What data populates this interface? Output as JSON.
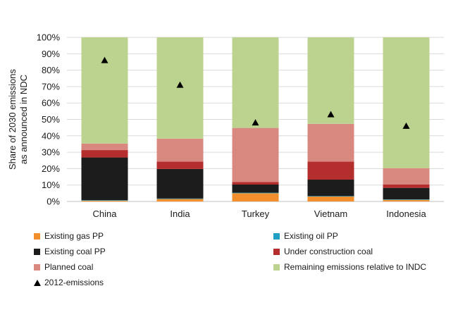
{
  "chart_data": {
    "type": "bar",
    "stacked": true,
    "title": "",
    "xlabel": "",
    "ylabel": "Share of 2030 emissions as announced in NDC",
    "ylabel_lines": [
      "Share of 2030 emissions",
      "as announced in NDC"
    ],
    "ylim": [
      0,
      100
    ],
    "yticks": [
      "0%",
      "10%",
      "20%",
      "30%",
      "40%",
      "50%",
      "60%",
      "70%",
      "80%",
      "90%",
      "100%"
    ],
    "grid": true,
    "legend_position": "bottom",
    "categories": [
      "China",
      "India",
      "Turkey",
      "Vietnam",
      "Indonesia"
    ],
    "series": [
      {
        "name": "Existing gas PP",
        "color": "#f28e2b",
        "values": [
          0.5,
          1.5,
          5,
          3,
          1
        ]
      },
      {
        "name": "Existing oil PP",
        "color": "#1f9fc4",
        "values": [
          0.3,
          0.3,
          0.3,
          0.3,
          0.3
        ]
      },
      {
        "name": "Existing coal PP",
        "color": "#1c1c1c",
        "values": [
          26,
          18,
          5,
          10,
          7
        ]
      },
      {
        "name": "Under construction coal",
        "color": "#b52e2e",
        "values": [
          4.5,
          4.5,
          1.5,
          11,
          2
        ]
      },
      {
        "name": "Planned coal",
        "color": "#d98880",
        "values": [
          4,
          14,
          33,
          23,
          10
        ]
      },
      {
        "name": "Remaining emissions relative to INDC",
        "color": "#bcd38f",
        "values": [
          64.7,
          61.7,
          55.2,
          52.7,
          79.7
        ]
      }
    ],
    "markers": {
      "name": "2012-emissions",
      "color": "#000000",
      "values": [
        86,
        71,
        48,
        53,
        46
      ]
    }
  }
}
